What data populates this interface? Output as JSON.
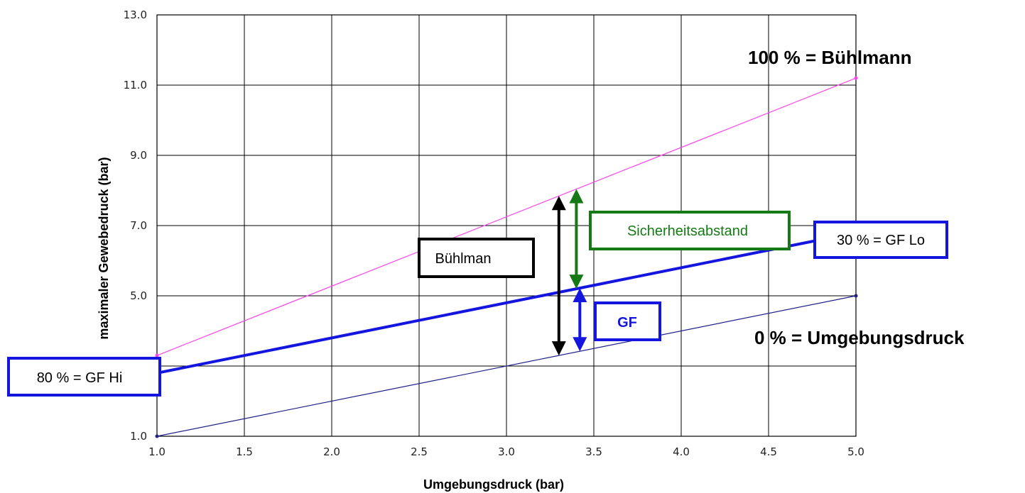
{
  "chart_data": {
    "type": "line",
    "title": "",
    "xlabel": "Umgebungsdruck (bar)",
    "ylabel": "maximaler Gewebedruck (bar)",
    "xlim": [
      1.0,
      5.0
    ],
    "ylim": [
      1.0,
      13.0
    ],
    "xticks": [
      "1.0",
      "1.5",
      "2.0",
      "2.5",
      "3.0",
      "3.5",
      "4.0",
      "4.5",
      "5.0"
    ],
    "yticks": [
      "1.0",
      "3.0",
      "5.0",
      "7.0",
      "9.0",
      "11.0",
      "13.0"
    ],
    "x_gridlines": [
      1.0,
      1.5,
      2.0,
      2.5,
      3.0,
      3.5,
      4.0,
      4.5,
      5.0
    ],
    "y_gridlines": [
      1.0,
      3.0,
      5.0,
      7.0,
      9.0,
      11.0,
      13.0
    ],
    "grid": true,
    "series": [
      {
        "key": "buehlmann",
        "x": [
          1.0,
          5.0
        ],
        "y": [
          3.3,
          11.2
        ],
        "color": "#ff44ee",
        "width": 1.2
      },
      {
        "key": "gf",
        "x": [
          1.0,
          5.0
        ],
        "y": [
          2.8,
          6.8
        ],
        "color": "#1515e0",
        "width": 4
      },
      {
        "key": "ambient",
        "x": [
          1.0,
          5.0
        ],
        "y": [
          1.0,
          5.0
        ],
        "color": "#20208a",
        "width": 1.2
      }
    ],
    "annotations": {
      "buehlmann_label": "100 % = Bühlmann",
      "ambient_label": "0 % = Umgebungsdruck",
      "gf_lo_label": "30 % = GF Lo",
      "gf_hi_label": "80 % = GF Hi",
      "buehlman_box": "Bühlman",
      "safety_box": "Sicherheitsabstand",
      "gf_box": "GF"
    },
    "colors": {
      "black_arrow": "#000000",
      "green": "#157a15",
      "blue": "#1515e0"
    }
  }
}
